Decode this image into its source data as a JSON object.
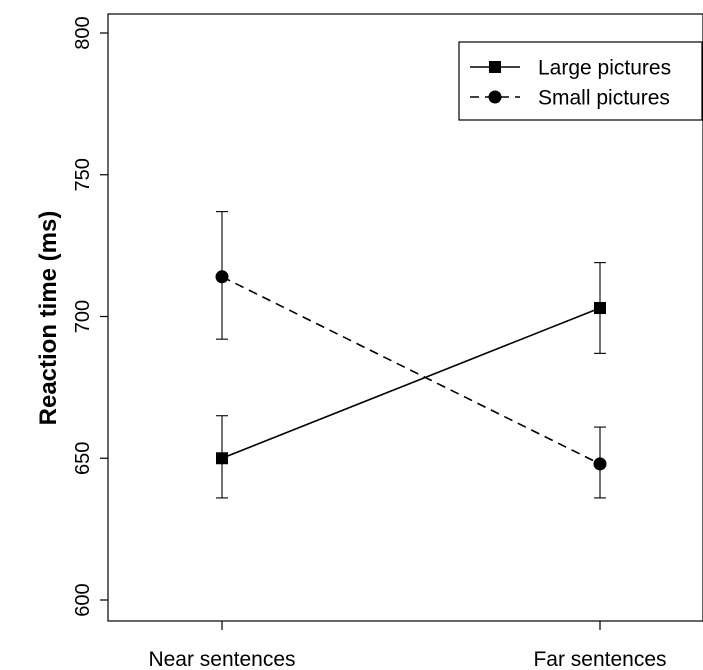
{
  "chart_data": {
    "type": "line",
    "title": "",
    "xlabel": "",
    "ylabel": "Reaction time (ms)",
    "categories": [
      "Near sentences",
      "Far sentences"
    ],
    "ylim": [
      600,
      800
    ],
    "yticks": [
      "600",
      "650",
      "700",
      "750",
      "800"
    ],
    "grid": false,
    "legend_position": "top-right",
    "series": [
      {
        "name": "Large pictures",
        "marker": "square",
        "line_style": "solid",
        "values": [
          650,
          703
        ],
        "error_low": [
          636,
          687
        ],
        "error_high": [
          665,
          719
        ]
      },
      {
        "name": "Small pictures",
        "marker": "circle",
        "line_style": "dashed",
        "values": [
          714,
          648
        ],
        "error_low": [
          692,
          636
        ],
        "error_high": [
          737,
          661
        ]
      }
    ]
  }
}
